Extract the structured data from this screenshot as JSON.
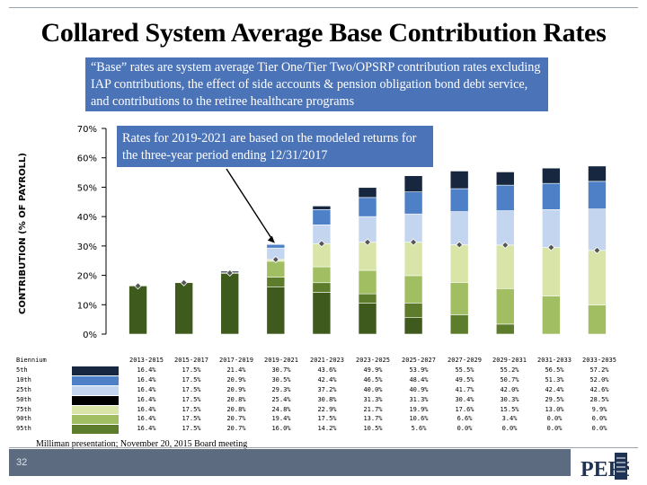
{
  "title": "Collared System Average Base Contribution Rates",
  "note": "“Base” rates are system average Tier One/Tier Two/OPSRP contribution rates excluding IAP contributions, the effect of side accounts & pension obligation bond debt service, and contributions to the retiree healthcare programs",
  "callout": "Rates for 2019-2021 are based on the modeled returns for the three-year period ending 12/31/2017",
  "source": "Milliman presentation; November 20, 2015 Board meeting",
  "page_number": "32",
  "logo_text": "PERS",
  "colors": {
    "p95": "#17273f",
    "p75": "#4d80c6",
    "p50": "#c4d6ef",
    "p25": "#d9e5a8",
    "p10": "#a1be62",
    "p5": "#5d7d2c",
    "base": "#3e5a1d",
    "marker": "#555555",
    "accent": "#4b73b8"
  },
  "chart_data": {
    "type": "bar",
    "title": "",
    "ylabel": "CONTRIBUTION (% OF PAYROLL)",
    "ylim": [
      0,
      70
    ],
    "ytick_labels": [
      "0%",
      "10%",
      "20%",
      "30%",
      "40%",
      "50%",
      "60%",
      "70%"
    ],
    "yticks": [
      0,
      10,
      20,
      30,
      40,
      50,
      60,
      70
    ],
    "table_header": "Biennium",
    "categories": [
      "2013-2015",
      "2015-2017",
      "2017-2019",
      "2019-2021",
      "2021-2023",
      "2023-2025",
      "2025-2027",
      "2027-2029",
      "2029-2031",
      "2031-2033",
      "2033-2035"
    ],
    "series": [
      {
        "name": "5th",
        "values_text": [
          "16.4%",
          "17.5%",
          "21.4%",
          "30.7%",
          "43.6%",
          "49.9%",
          "53.9%",
          "55.5%",
          "55.2%",
          "56.5%",
          "57.2%"
        ],
        "values": [
          16.4,
          17.5,
          21.4,
          30.7,
          43.6,
          49.9,
          53.9,
          55.5,
          55.2,
          56.5,
          57.2
        ]
      },
      {
        "name": "10th",
        "values_text": [
          "16.4%",
          "17.5%",
          "20.9%",
          "30.5%",
          "42.4%",
          "46.5%",
          "48.4%",
          "49.5%",
          "50.7%",
          "51.3%",
          "52.0%"
        ],
        "values": [
          16.4,
          17.5,
          20.9,
          30.5,
          42.4,
          46.5,
          48.4,
          49.5,
          50.7,
          51.3,
          52.0
        ]
      },
      {
        "name": "25th",
        "values_text": [
          "16.4%",
          "17.5%",
          "20.9%",
          "29.3%",
          "37.2%",
          "40.0%",
          "40.9%",
          "41.7%",
          "42.0%",
          "42.4%",
          "42.6%"
        ],
        "values": [
          16.4,
          17.5,
          20.9,
          29.3,
          37.2,
          40.0,
          40.9,
          41.7,
          42.0,
          42.4,
          42.6
        ]
      },
      {
        "name": "50th",
        "values_text": [
          "16.4%",
          "17.5%",
          "20.8%",
          "25.4%",
          "30.8%",
          "31.3%",
          "31.3%",
          "30.4%",
          "30.3%",
          "29.5%",
          "28.5%"
        ],
        "values": [
          16.4,
          17.5,
          20.8,
          25.4,
          30.8,
          31.3,
          31.3,
          30.4,
          30.3,
          29.5,
          28.5
        ]
      },
      {
        "name": "75th",
        "values_text": [
          "16.4%",
          "17.5%",
          "20.8%",
          "24.8%",
          "22.9%",
          "21.7%",
          "19.9%",
          "17.6%",
          "15.5%",
          "13.0%",
          "9.9%"
        ],
        "values": [
          16.4,
          17.5,
          20.8,
          24.8,
          22.9,
          21.7,
          19.9,
          17.6,
          15.5,
          13.0,
          9.9
        ]
      },
      {
        "name": "90th",
        "values_text": [
          "16.4%",
          "17.5%",
          "20.7%",
          "19.4%",
          "17.5%",
          "13.7%",
          "10.6%",
          "6.6%",
          "3.4%",
          "0.0%",
          "0.0%"
        ],
        "values": [
          16.4,
          17.5,
          20.7,
          19.4,
          17.5,
          13.7,
          10.6,
          6.6,
          3.4,
          0.0,
          0.0
        ]
      },
      {
        "name": "95th",
        "values_text": [
          "16.4%",
          "17.5%",
          "20.7%",
          "16.0%",
          "14.2%",
          "10.5%",
          "5.6%",
          "0.0%",
          "0.0%",
          "0.0%",
          "0.0%"
        ],
        "values": [
          16.4,
          17.5,
          20.7,
          16.0,
          14.2,
          10.5,
          5.6,
          0.0,
          0.0,
          0.0,
          0.0
        ]
      }
    ],
    "grid": false,
    "legend": "table-below"
  }
}
